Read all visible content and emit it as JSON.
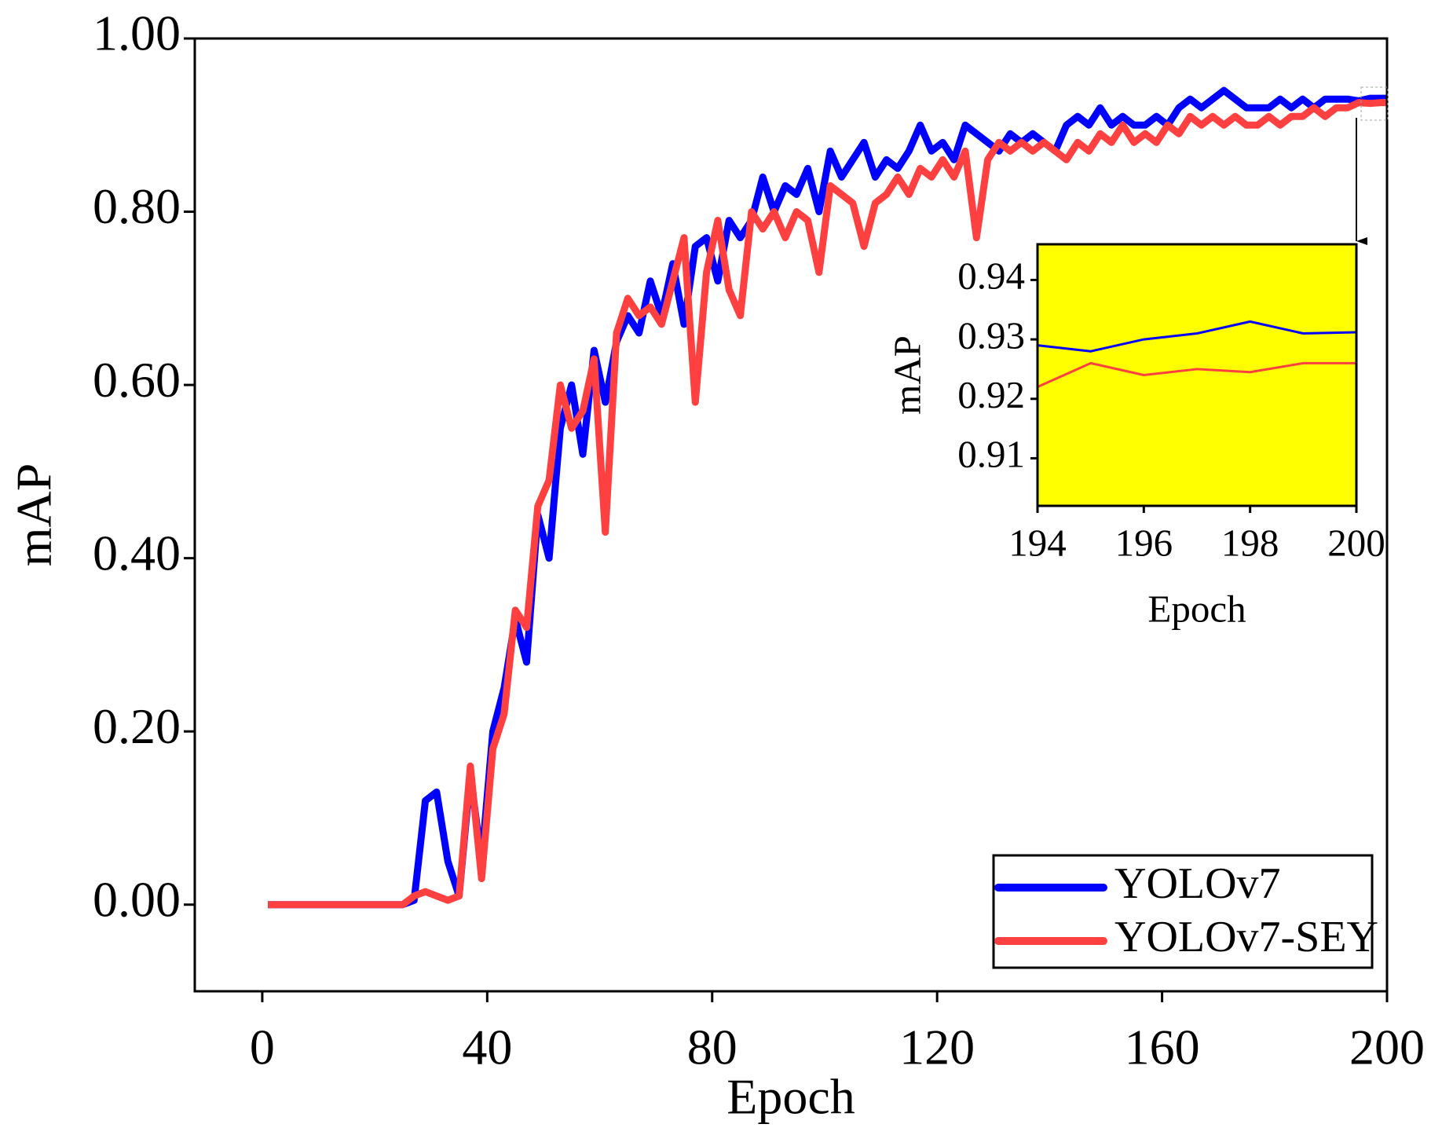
{
  "chart_data": [
    {
      "type": "line",
      "xlabel": "Epoch",
      "ylabel": "mAP",
      "xlim": [
        -12,
        200
      ],
      "xticks": [
        0,
        40,
        80,
        120,
        160,
        200
      ],
      "ylim": [
        -0.1,
        1.0
      ],
      "yticks": [
        {
          "value": 0,
          "label": "0.00"
        },
        {
          "value": 0.2,
          "label": "0.20"
        },
        {
          "value": 0.4,
          "label": "0.40"
        },
        {
          "value": 0.6,
          "label": "0.60"
        },
        {
          "value": 0.8,
          "label": "0.80"
        },
        {
          "value": 1.0,
          "label": "1.00"
        }
      ],
      "legend": "lower right",
      "x": [
        1,
        3,
        5,
        7,
        9,
        11,
        13,
        15,
        17,
        19,
        21,
        23,
        25,
        27,
        29,
        31,
        33,
        35,
        37,
        39,
        41,
        43,
        45,
        47,
        49,
        51,
        53,
        55,
        57,
        59,
        61,
        63,
        65,
        67,
        69,
        71,
        73,
        75,
        77,
        79,
        81,
        83,
        85,
        87,
        89,
        91,
        93,
        95,
        97,
        99,
        101,
        103,
        105,
        107,
        109,
        111,
        113,
        115,
        117,
        119,
        121,
        123,
        125,
        127,
        129,
        131,
        133,
        135,
        137,
        139,
        141,
        143,
        145,
        147,
        149,
        151,
        153,
        155,
        157,
        159,
        161,
        163,
        165,
        167,
        169,
        171,
        173,
        175,
        177,
        179,
        181,
        183,
        185,
        187,
        189,
        191,
        193,
        195,
        197,
        199,
        200
      ],
      "series": [
        {
          "name": "YOLOv7",
          "color": "#0000ff",
          "values": [
            0,
            0,
            0,
            0,
            0,
            0,
            0,
            0,
            0,
            0,
            0,
            0,
            0,
            0.005,
            0.12,
            0.13,
            0.05,
            0.01,
            0.15,
            0.05,
            0.2,
            0.25,
            0.33,
            0.28,
            0.45,
            0.4,
            0.55,
            0.6,
            0.52,
            0.64,
            0.58,
            0.65,
            0.68,
            0.66,
            0.72,
            0.68,
            0.74,
            0.67,
            0.76,
            0.77,
            0.72,
            0.79,
            0.77,
            0.79,
            0.84,
            0.8,
            0.83,
            0.82,
            0.85,
            0.8,
            0.87,
            0.84,
            0.86,
            0.88,
            0.84,
            0.86,
            0.85,
            0.87,
            0.9,
            0.87,
            0.88,
            0.86,
            0.9,
            0.89,
            0.88,
            0.87,
            0.89,
            0.88,
            0.89,
            0.88,
            0.87,
            0.9,
            0.91,
            0.9,
            0.92,
            0.9,
            0.91,
            0.9,
            0.9,
            0.91,
            0.9,
            0.92,
            0.93,
            0.92,
            0.93,
            0.94,
            0.93,
            0.92,
            0.92,
            0.92,
            0.93,
            0.92,
            0.93,
            0.92,
            0.93,
            0.93,
            0.93,
            0.928,
            0.931,
            0.931,
            0.931
          ]
        },
        {
          "name": "YOLOv7-SEY",
          "color": "#ff4040",
          "values": [
            0,
            0,
            0,
            0,
            0,
            0,
            0,
            0,
            0,
            0,
            0,
            0,
            0,
            0.01,
            0.015,
            0.01,
            0.005,
            0.01,
            0.16,
            0.03,
            0.18,
            0.22,
            0.34,
            0.32,
            0.46,
            0.49,
            0.6,
            0.55,
            0.57,
            0.63,
            0.43,
            0.66,
            0.7,
            0.68,
            0.69,
            0.67,
            0.72,
            0.77,
            0.58,
            0.73,
            0.79,
            0.71,
            0.68,
            0.8,
            0.78,
            0.8,
            0.77,
            0.8,
            0.79,
            0.73,
            0.83,
            0.82,
            0.81,
            0.76,
            0.81,
            0.82,
            0.84,
            0.82,
            0.85,
            0.84,
            0.86,
            0.84,
            0.87,
            0.77,
            0.86,
            0.88,
            0.87,
            0.88,
            0.87,
            0.88,
            0.87,
            0.86,
            0.88,
            0.87,
            0.89,
            0.88,
            0.9,
            0.88,
            0.89,
            0.88,
            0.9,
            0.89,
            0.91,
            0.9,
            0.91,
            0.9,
            0.91,
            0.9,
            0.9,
            0.91,
            0.9,
            0.91,
            0.91,
            0.92,
            0.91,
            0.92,
            0.92,
            0.926,
            0.925,
            0.926,
            0.926
          ]
        }
      ]
    },
    {
      "type": "line",
      "xlabel": "Epoch",
      "ylabel": "mAP",
      "background": "#ffff00",
      "xlim": [
        194,
        200
      ],
      "xticks": [
        194,
        196,
        198,
        200
      ],
      "ylim": [
        0.902,
        0.946
      ],
      "yticks": [
        0.91,
        0.92,
        0.93,
        0.94
      ],
      "x": [
        194,
        195,
        196,
        197,
        198,
        199,
        200
      ],
      "series": [
        {
          "name": "YOLOv7",
          "color": "#0000ff",
          "values": [
            0.929,
            0.928,
            0.93,
            0.931,
            0.933,
            0.931,
            0.9312
          ]
        },
        {
          "name": "YOLOv7-SEY",
          "color": "#ff4040",
          "values": [
            0.922,
            0.926,
            0.924,
            0.925,
            0.9245,
            0.926,
            0.926
          ]
        }
      ]
    }
  ]
}
